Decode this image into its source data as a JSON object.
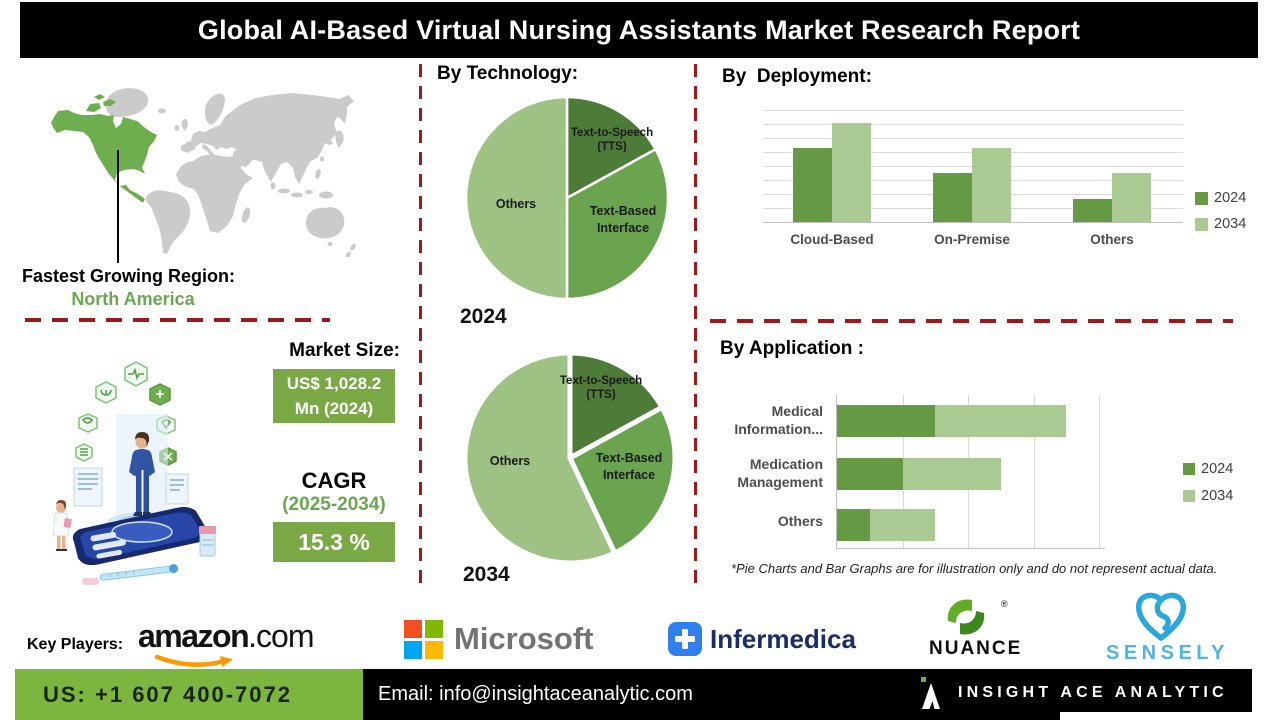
{
  "title": "Global AI-Based Virtual Nursing Assistants Market Research Report",
  "region": {
    "label": "Fastest Growing Region:",
    "value": "North America"
  },
  "market_size": {
    "label": "Market Size:",
    "value": "US$ 1,028.2 Mn (2024)"
  },
  "cagr": {
    "label": "CAGR",
    "period": "(2025-2034)",
    "value": "15.3 %"
  },
  "note": "*Pie Charts and Bar Graphs are for illustration only and do not represent actual data.",
  "key_players": {
    "label": "Key Players:",
    "amazon": {
      "name": "amazon.com",
      "part1": "amazon",
      "part2": ".com"
    },
    "microsoft": {
      "name": "Microsoft"
    },
    "infermedica": {
      "name": "Infermedica"
    },
    "nuance": {
      "name": "NUANCE",
      "reg": "®"
    },
    "sensely": {
      "name": "SENSELY"
    }
  },
  "footer": {
    "phone": "US: +1 607 400-7072",
    "email": "Email: info@insightaceanalytic.com",
    "brand": "INSIGHT ACE ANALYTIC"
  },
  "colors": {
    "accent_green_dark": "#4e7c38",
    "accent_green_mid": "#6aa44f",
    "accent_green_light": "#9ec284",
    "bar_2024": "#669944",
    "bar_2034": "#a9cb93",
    "map_green": "#6fae4e",
    "map_gray": "#cbcbcb",
    "dashed_red": "#9e1a1a",
    "footer_green": "#7cb63e",
    "box_green": "#79a844"
  },
  "chart_data": [
    {
      "type": "pie",
      "title": "By Technology:",
      "year": "2024",
      "slices": [
        {
          "label": "Text-to-Speech (TTS)",
          "value": 17,
          "color": "#4e7c38"
        },
        {
          "label": "Text-Based Interface",
          "value": 33,
          "color": "#6aa44f"
        },
        {
          "label": "Others",
          "value": 50,
          "color": "#9ec284"
        }
      ]
    },
    {
      "type": "pie",
      "title": "By Technology:",
      "year": "2034",
      "slices": [
        {
          "label": "Text-to-Speech (TTS)",
          "value": 17,
          "color": "#4e7c38"
        },
        {
          "label": "Text-Based Interface",
          "value": 26,
          "color": "#6aa44f"
        },
        {
          "label": "Others",
          "value": 57,
          "color": "#9ec284"
        }
      ]
    },
    {
      "type": "bar",
      "title": "By  Deployment:",
      "orientation": "vertical",
      "categories": [
        "Cloud-Based",
        "On-Premise",
        "Others"
      ],
      "series": [
        {
          "name": "2024",
          "color": "#669944",
          "values": [
            66,
            44,
            21
          ]
        },
        {
          "name": "2034",
          "color": "#a9cb93",
          "values": [
            88,
            66,
            44
          ]
        }
      ],
      "ylim": [
        0,
        100
      ],
      "grid": true,
      "legend": "right"
    },
    {
      "type": "bar",
      "title": "By Application :",
      "orientation": "horizontal-stacked",
      "categories": [
        "Medical Information...",
        "Medication Management",
        "Others"
      ],
      "series": [
        {
          "name": "2024",
          "color": "#669944",
          "values": [
            15,
            10,
            5
          ]
        },
        {
          "name": "2034",
          "color": "#a9cb93",
          "values": [
            35,
            25,
            15
          ]
        }
      ],
      "xlim": [
        0,
        40
      ],
      "grid": true,
      "legend": "right"
    }
  ]
}
